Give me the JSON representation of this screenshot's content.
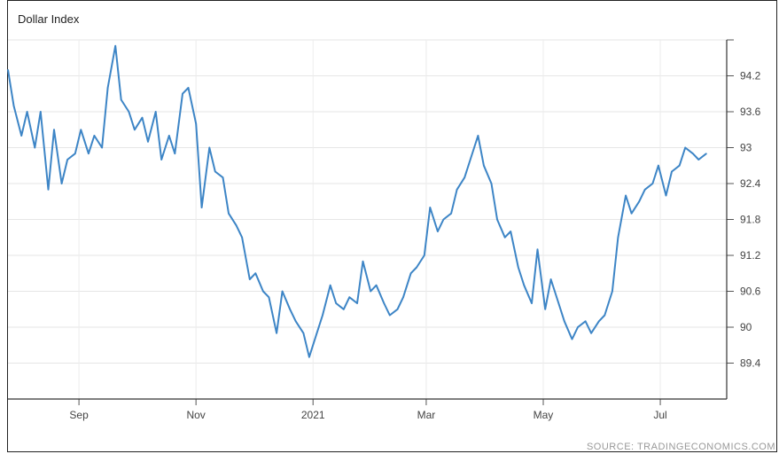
{
  "chart_data": {
    "type": "line",
    "title": "Dollar Index",
    "xlabel": "",
    "ylabel": "",
    "x_tick_labels": [
      "Sep",
      "Nov",
      "2021",
      "Mar",
      "May",
      "Jul"
    ],
    "y_tick_labels": [
      "94.2",
      "93.6",
      "93",
      "92.4",
      "91.8",
      "91.2",
      "90.6",
      "90",
      "89.4"
    ],
    "ylim": [
      88.8,
      94.8
    ],
    "grid": true,
    "axis_position": "right",
    "line_color": "#3d85c6",
    "series": [
      {
        "x": [
          "2020-07-26",
          "2020-07-29",
          "2020-08-02",
          "2020-08-05",
          "2020-08-09",
          "2020-08-12",
          "2020-08-16",
          "2020-08-19",
          "2020-08-23",
          "2020-08-26",
          "2020-08-30",
          "2020-09-02",
          "2020-09-06",
          "2020-09-09",
          "2020-09-13",
          "2020-09-16",
          "2020-09-20",
          "2020-09-23",
          "2020-09-27",
          "2020-09-30",
          "2020-10-04",
          "2020-10-07",
          "2020-10-11",
          "2020-10-14",
          "2020-10-18",
          "2020-10-21",
          "2020-10-25",
          "2020-10-28",
          "2020-11-01",
          "2020-11-04",
          "2020-11-08",
          "2020-11-11",
          "2020-11-15",
          "2020-11-18",
          "2020-11-22",
          "2020-11-25",
          "2020-11-29",
          "2020-12-02",
          "2020-12-06",
          "2020-12-09",
          "2020-12-13",
          "2020-12-16",
          "2020-12-20",
          "2020-12-23",
          "2020-12-27",
          "2020-12-30",
          "2021-01-03",
          "2021-01-06",
          "2021-01-10",
          "2021-01-13",
          "2021-01-17",
          "2021-01-20",
          "2021-01-24",
          "2021-01-27",
          "2021-01-31",
          "2021-02-03",
          "2021-02-07",
          "2021-02-10",
          "2021-02-14",
          "2021-02-17",
          "2021-02-21",
          "2021-02-24",
          "2021-02-28",
          "2021-03-03",
          "2021-03-07",
          "2021-03-10",
          "2021-03-14",
          "2021-03-17",
          "2021-03-21",
          "2021-03-24",
          "2021-03-28",
          "2021-03-31",
          "2021-04-04",
          "2021-04-07",
          "2021-04-11",
          "2021-04-14",
          "2021-04-18",
          "2021-04-21",
          "2021-04-25",
          "2021-04-28",
          "2021-05-02",
          "2021-05-05",
          "2021-05-09",
          "2021-05-12",
          "2021-05-16",
          "2021-05-19",
          "2021-05-23",
          "2021-05-26",
          "2021-05-30",
          "2021-06-02",
          "2021-06-06",
          "2021-06-09",
          "2021-06-13",
          "2021-06-16",
          "2021-06-20",
          "2021-06-23",
          "2021-06-27",
          "2021-06-30",
          "2021-07-04",
          "2021-07-07",
          "2021-07-11",
          "2021-07-14",
          "2021-07-18",
          "2021-07-21",
          "2021-07-25"
        ],
        "values": [
          94.3,
          93.7,
          93.2,
          93.6,
          93.0,
          93.6,
          92.3,
          93.3,
          92.4,
          92.8,
          92.9,
          93.3,
          92.9,
          93.2,
          93.0,
          94.0,
          94.7,
          93.8,
          93.6,
          93.3,
          93.5,
          93.1,
          93.6,
          92.8,
          93.2,
          92.9,
          93.9,
          94.0,
          93.4,
          92.0,
          93.0,
          92.6,
          92.5,
          91.9,
          91.7,
          91.5,
          90.8,
          90.9,
          90.6,
          90.5,
          89.9,
          90.6,
          90.3,
          90.1,
          89.9,
          89.5,
          89.9,
          90.2,
          90.7,
          90.4,
          90.3,
          90.5,
          90.4,
          91.1,
          90.6,
          90.7,
          90.4,
          90.2,
          90.3,
          90.5,
          90.9,
          91.0,
          91.2,
          92.0,
          91.6,
          91.8,
          91.9,
          92.3,
          92.5,
          92.8,
          93.2,
          92.7,
          92.4,
          91.8,
          91.5,
          91.6,
          91.0,
          90.7,
          90.4,
          91.3,
          90.3,
          90.8,
          90.4,
          90.1,
          89.8,
          90.0,
          90.1,
          89.9,
          90.1,
          90.2,
          90.6,
          91.5,
          92.2,
          91.9,
          92.1,
          92.3,
          92.4,
          92.7,
          92.2,
          92.6,
          92.7,
          93.0,
          92.9,
          92.8,
          92.9
        ]
      }
    ]
  },
  "source_text": "SOURCE: TRADINGECONOMICS.COM"
}
